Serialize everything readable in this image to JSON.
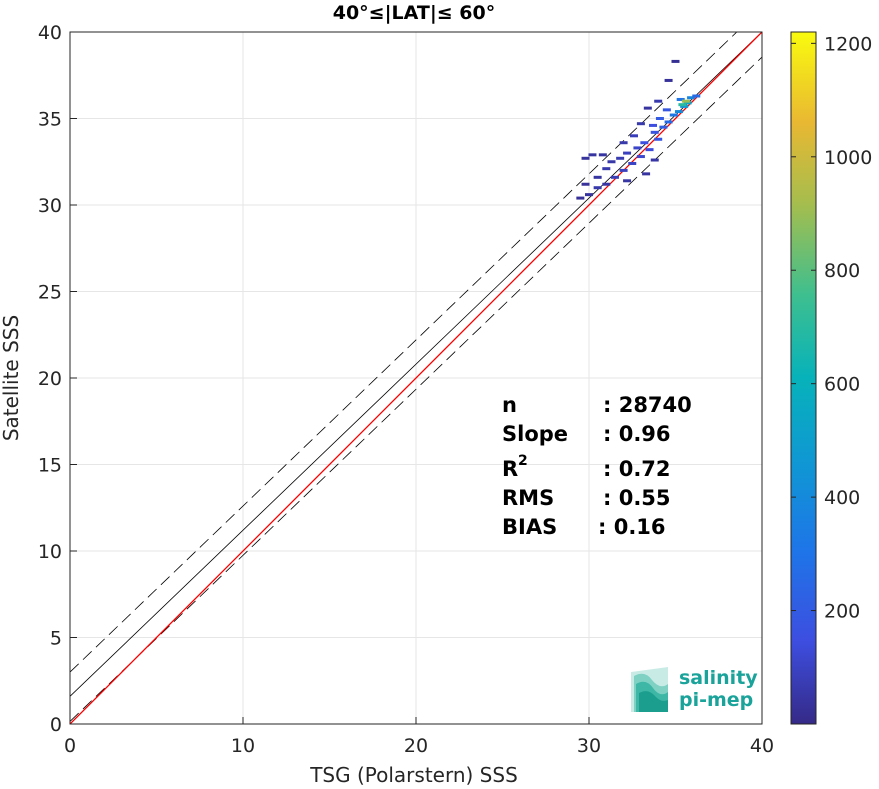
{
  "chart_data": {
    "type": "scatter",
    "subtype": "2d-density-scatter",
    "title": "40°≤|LAT|≤ 60°",
    "xlabel": "TSG (Polarstern) SSS",
    "ylabel": "Satellite SSS",
    "xlim": [
      0,
      40
    ],
    "ylim": [
      0,
      40
    ],
    "xticks": [
      "0",
      "10",
      "20",
      "30",
      "40"
    ],
    "yticks": [
      "0",
      "5",
      "10",
      "15",
      "20",
      "25",
      "30",
      "35",
      "40"
    ],
    "grid": true,
    "colorbar": {
      "range": [
        0,
        1220
      ],
      "ticks": [
        "200",
        "400",
        "600",
        "800",
        "1000",
        "1200"
      ],
      "colormap": "parula"
    },
    "lines": [
      {
        "role": "1:1 line",
        "color": "#000000",
        "style": "solid",
        "slope": 1.0,
        "intercept": 0.0
      },
      {
        "role": "fit line",
        "color": "#000000",
        "style": "solid",
        "slope": 0.96,
        "intercept": 1.6
      },
      {
        "role": "upper bound",
        "color": "#000000",
        "style": "dashed",
        "slope": 0.96,
        "intercept": 3.0
      },
      {
        "role": "lower bound",
        "color": "#000000",
        "style": "dashed",
        "slope": 0.96,
        "intercept": 0.15
      },
      {
        "role": "red fit line",
        "color": "#ff0000",
        "style": "solid",
        "slope": 1.0,
        "intercept": 0.0
      }
    ],
    "stats": {
      "n_label": "n",
      "n_value": ": 28740",
      "slope_label": "Slope",
      "slope_value": ": 0.96",
      "r2_label": "R",
      "r2_sup": "2",
      "r2_value": ": 0.72",
      "rms_label": "RMS",
      "rms_value": ": 0.55",
      "bias_label": "BIAS",
      "bias_value": ": 0.16"
    },
    "points": [
      {
        "x": 29.5,
        "y": 30.4,
        "c": 30
      },
      {
        "x": 30.0,
        "y": 30.6,
        "c": 40
      },
      {
        "x": 30.5,
        "y": 31.0,
        "c": 60
      },
      {
        "x": 31.0,
        "y": 31.2,
        "c": 50
      },
      {
        "x": 29.8,
        "y": 31.2,
        "c": 30
      },
      {
        "x": 30.5,
        "y": 31.6,
        "c": 45
      },
      {
        "x": 31.5,
        "y": 31.6,
        "c": 80
      },
      {
        "x": 32.0,
        "y": 32.0,
        "c": 90
      },
      {
        "x": 31.0,
        "y": 32.1,
        "c": 60
      },
      {
        "x": 31.3,
        "y": 32.5,
        "c": 55
      },
      {
        "x": 32.5,
        "y": 32.4,
        "c": 100
      },
      {
        "x": 33.0,
        "y": 32.8,
        "c": 120
      },
      {
        "x": 31.8,
        "y": 32.7,
        "c": 70
      },
      {
        "x": 32.2,
        "y": 33.0,
        "c": 90
      },
      {
        "x": 30.2,
        "y": 32.9,
        "c": 40
      },
      {
        "x": 29.8,
        "y": 32.7,
        "c": 35
      },
      {
        "x": 30.8,
        "y": 32.9,
        "c": 45
      },
      {
        "x": 33.5,
        "y": 33.2,
        "c": 140
      },
      {
        "x": 32.8,
        "y": 33.3,
        "c": 110
      },
      {
        "x": 33.2,
        "y": 33.6,
        "c": 150
      },
      {
        "x": 34.0,
        "y": 33.8,
        "c": 180
      },
      {
        "x": 33.8,
        "y": 34.2,
        "c": 170
      },
      {
        "x": 32.6,
        "y": 34.0,
        "c": 80
      },
      {
        "x": 32.0,
        "y": 33.6,
        "c": 60
      },
      {
        "x": 34.3,
        "y": 34.5,
        "c": 220
      },
      {
        "x": 34.6,
        "y": 34.8,
        "c": 260
      },
      {
        "x": 33.7,
        "y": 34.6,
        "c": 150
      },
      {
        "x": 34.1,
        "y": 35.0,
        "c": 200
      },
      {
        "x": 34.9,
        "y": 35.2,
        "c": 320
      },
      {
        "x": 35.2,
        "y": 35.4,
        "c": 400
      },
      {
        "x": 34.5,
        "y": 35.5,
        "c": 180
      },
      {
        "x": 35.5,
        "y": 35.7,
        "c": 450
      },
      {
        "x": 35.7,
        "y": 35.9,
        "c": 520
      },
      {
        "x": 35.3,
        "y": 36.1,
        "c": 300
      },
      {
        "x": 35.9,
        "y": 36.2,
        "c": 380
      },
      {
        "x": 36.2,
        "y": 36.3,
        "c": 260
      },
      {
        "x": 34.0,
        "y": 36.0,
        "c": 60
      },
      {
        "x": 34.6,
        "y": 37.2,
        "c": 30
      },
      {
        "x": 35.0,
        "y": 38.3,
        "c": 20
      },
      {
        "x": 33.4,
        "y": 35.6,
        "c": 40
      },
      {
        "x": 33.0,
        "y": 34.7,
        "c": 60
      },
      {
        "x": 32.2,
        "y": 31.4,
        "c": 50
      },
      {
        "x": 33.3,
        "y": 31.8,
        "c": 40
      },
      {
        "x": 33.8,
        "y": 32.6,
        "c": 50
      },
      {
        "x": 35.6,
        "y": 36.0,
        "c": 900
      },
      {
        "x": 35.4,
        "y": 35.8,
        "c": 700
      }
    ]
  },
  "logo": {
    "line1": "salinity",
    "line2": "pi-mep"
  }
}
